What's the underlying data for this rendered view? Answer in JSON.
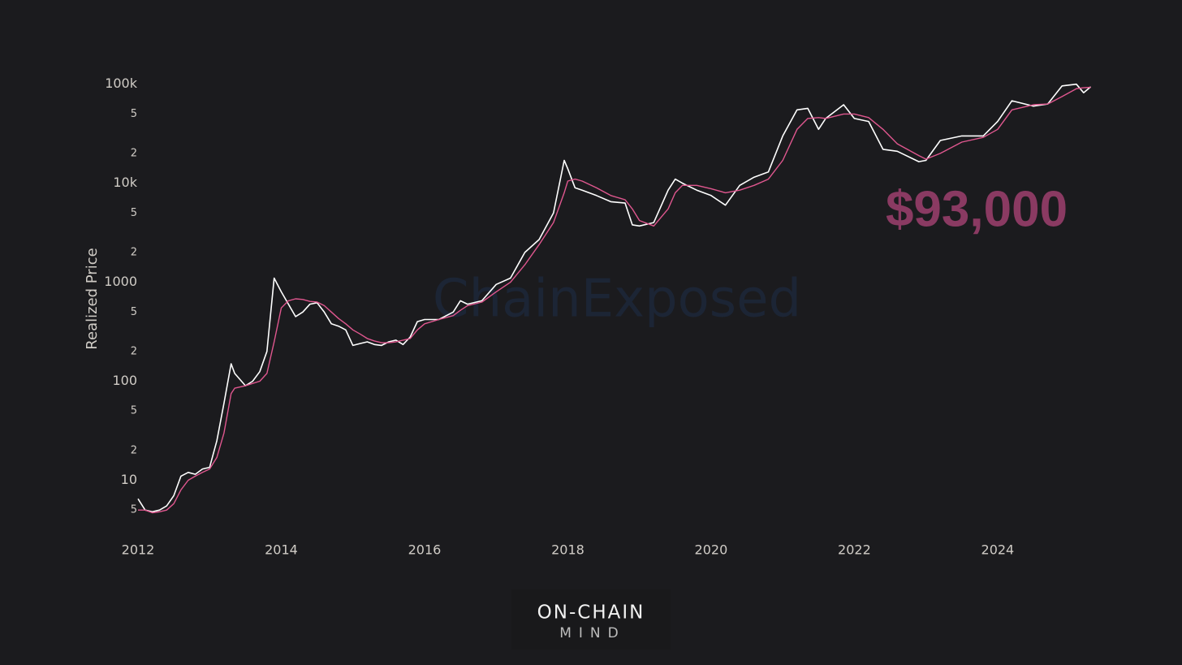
{
  "chart_data": {
    "type": "line",
    "y_label": "Realized Price",
    "annotation": "$93,000",
    "watermark": "ChainExposed",
    "logo": {
      "top": "ON-CHAIN",
      "bottom": "MIND"
    },
    "log_y": true,
    "grid": false,
    "xlim": [
      2012,
      2025.35
    ],
    "xticks": [
      2012,
      2014,
      2016,
      2018,
      2020,
      2022,
      2024
    ],
    "ylim": [
      4,
      120000
    ],
    "yticks": [
      5,
      10,
      {
        "value": 20,
        "label": "2"
      },
      {
        "value": 50,
        "label": "5"
      },
      100,
      {
        "value": 200,
        "label": "2"
      },
      {
        "value": 500,
        "label": "5"
      },
      1000,
      {
        "value": 2000,
        "label": "2"
      },
      {
        "value": 5000,
        "label": "5"
      },
      {
        "value": 10000,
        "label": "10k"
      },
      {
        "value": 20000,
        "label": "2"
      },
      {
        "value": 50000,
        "label": "5"
      },
      {
        "value": 100000,
        "label": "100k"
      }
    ],
    "x": [
      2012.0,
      2012.1,
      2012.2,
      2012.3,
      2012.4,
      2012.5,
      2012.6,
      2012.7,
      2012.8,
      2012.9,
      2013.0,
      2013.1,
      2013.2,
      2013.3,
      2013.35,
      2013.5,
      2013.6,
      2013.7,
      2013.8,
      2013.9,
      2014.0,
      2014.1,
      2014.2,
      2014.3,
      2014.4,
      2014.5,
      2014.6,
      2014.7,
      2014.8,
      2014.9,
      2015.0,
      2015.1,
      2015.2,
      2015.3,
      2015.4,
      2015.5,
      2015.6,
      2015.7,
      2015.8,
      2015.9,
      2016.0,
      2016.2,
      2016.4,
      2016.5,
      2016.6,
      2016.8,
      2017.0,
      2017.2,
      2017.4,
      2017.6,
      2017.8,
      2017.95,
      2018.0,
      2018.1,
      2018.2,
      2018.4,
      2018.6,
      2018.8,
      2018.9,
      2019.0,
      2019.2,
      2019.4,
      2019.5,
      2019.6,
      2019.8,
      2020.0,
      2020.2,
      2020.4,
      2020.6,
      2020.8,
      2021.0,
      2021.2,
      2021.35,
      2021.5,
      2021.6,
      2021.85,
      2022.0,
      2022.2,
      2022.4,
      2022.6,
      2022.9,
      2023.0,
      2023.2,
      2023.5,
      2023.8,
      2024.0,
      2024.2,
      2024.5,
      2024.7,
      2024.9,
      2025.1,
      2025.2,
      2025.3
    ],
    "series": [
      {
        "color": "#ffffff",
        "values": [
          6.5,
          5,
          4.8,
          5,
          5.5,
          7,
          11,
          12,
          11.5,
          13,
          13.5,
          25,
          60,
          150,
          120,
          90,
          100,
          125,
          200,
          1100,
          800,
          600,
          450,
          500,
          600,
          620,
          500,
          380,
          360,
          330,
          230,
          240,
          250,
          235,
          230,
          250,
          260,
          235,
          280,
          400,
          420,
          420,
          500,
          650,
          600,
          650,
          950,
          1100,
          2000,
          2700,
          5000,
          17000,
          14000,
          9000,
          8500,
          7500,
          6500,
          6300,
          3800,
          3700,
          4000,
          8500,
          11000,
          10000,
          8500,
          7500,
          6000,
          9500,
          11500,
          13000,
          30000,
          55000,
          57000,
          35000,
          45000,
          62000,
          45000,
          42000,
          22000,
          21000,
          16500,
          17000,
          27000,
          30000,
          30000,
          42000,
          68000,
          60000,
          63000,
          96000,
          100000,
          82000,
          94000
        ]
      },
      {
        "color": "#e0578f",
        "values": [
          5,
          5,
          4.7,
          4.8,
          5,
          5.8,
          8,
          10,
          11,
          12,
          13,
          17,
          30,
          75,
          85,
          90,
          95,
          100,
          120,
          250,
          550,
          650,
          680,
          670,
          640,
          630,
          580,
          500,
          430,
          380,
          330,
          300,
          270,
          255,
          245,
          245,
          250,
          260,
          270,
          330,
          380,
          420,
          460,
          520,
          580,
          630,
          800,
          1000,
          1500,
          2400,
          4000,
          8000,
          10500,
          11000,
          10500,
          9000,
          7500,
          6800,
          5500,
          4200,
          3700,
          5500,
          8000,
          9500,
          9500,
          8800,
          8000,
          8500,
          9500,
          11000,
          17000,
          35000,
          45000,
          46000,
          45000,
          50000,
          50000,
          46000,
          35000,
          25000,
          19000,
          17500,
          20000,
          26000,
          29000,
          35000,
          55000,
          62000,
          63000,
          75000,
          90000,
          92000,
          93000
        ]
      }
    ]
  }
}
